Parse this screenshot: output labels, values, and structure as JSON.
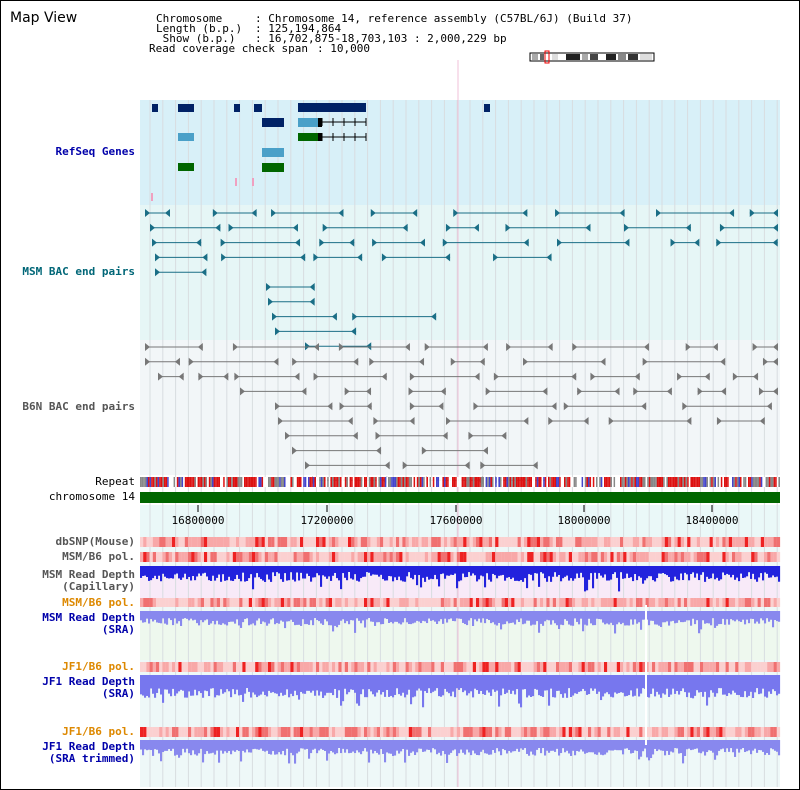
{
  "header": {
    "title": "Map View",
    "info": [
      {
        "label": "Chromosome     ",
        "value": ": Chromosome 14, reference assembly (C57BL/6J) (Build 37)"
      },
      {
        "label": "Length (b.p.)",
        "value": ": 125,194,864"
      },
      {
        "label": " Show (b.p.)",
        "value": ": 16,702,875-18,703,103 : 2,000,229 bp"
      },
      {
        "label": "Read coverage check span",
        "value": ": 10,000"
      }
    ]
  },
  "tracks": {
    "refseq": "RefSeq Genes",
    "msm_bac": "MSM BAC end pairs",
    "b6n_bac": "B6N BAC end pairs",
    "repeat": "Repeat",
    "chromosome": "chromosome 14",
    "dbsnp": "dbSNP(Mouse)",
    "msm_b6_pol_1": "MSM/B6 pol.",
    "msm_depth_cap_1": "MSM Read Depth",
    "msm_depth_cap_2": "(Capillary)",
    "msm_b6_pol_2": "MSM/B6 pol.",
    "msm_depth_sra_1": "MSM Read Depth",
    "msm_depth_sra_2": "(SRA)",
    "jf1_b6_pol_1": "JF1/B6 pol.",
    "jf1_depth_sra_1": "JF1 Read Depth",
    "jf1_depth_sra_2": "(SRA)",
    "jf1_b6_pol_2": "JF1/B6 pol.",
    "jf1_depth_tr_1": "JF1 Read Depth",
    "jf1_depth_tr_2": "(SRA trimmed)"
  },
  "axis": {
    "ticks": [
      "16800000",
      "17200000",
      "17600000",
      "18000000",
      "18400000"
    ]
  },
  "colors": {
    "label_blue": "#0000aa",
    "label_teal": "#006677",
    "label_gray": "#555555",
    "label_orange": "#dd8800",
    "refseq_bg": "#d8f0f8",
    "bac_bg": "#e6f6f6",
    "chromosome_green": "#006600",
    "gene_navy": "#002266",
    "gene_teal": "#4aa0c8",
    "gene_green": "#006600"
  }
}
